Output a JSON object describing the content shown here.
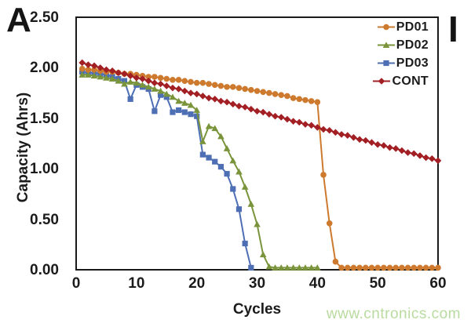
{
  "panel_label": "A",
  "side_label": "I",
  "watermark": {
    "text": "www.cntronics.com",
    "color": "#b9dba0"
  },
  "axis_color": "#1a1a1a",
  "chart_data": {
    "type": "line",
    "title": "",
    "xlabel": "Cycles",
    "ylabel": "Capacity (Ahrs)",
    "xlim": [
      0,
      60
    ],
    "ylim": [
      0,
      2.5
    ],
    "xticks": [
      0,
      10,
      20,
      30,
      40,
      50,
      60
    ],
    "ytick_labels": [
      "0.00",
      "0.50",
      "1.00",
      "1.50",
      "2.00",
      "2.50"
    ],
    "grid": false,
    "legend_position": "top-right-inside",
    "legend_order": [
      "PD01",
      "PD02",
      "PD03",
      "CONT"
    ],
    "series": [
      {
        "name": "PD01",
        "color": "#CE7A2E",
        "marker": "circle",
        "x_start": 1,
        "values": [
          1.99,
          1.98,
          1.98,
          1.97,
          1.96,
          1.96,
          1.95,
          1.94,
          1.94,
          1.93,
          1.92,
          1.91,
          1.91,
          1.9,
          1.89,
          1.88,
          1.88,
          1.87,
          1.86,
          1.85,
          1.85,
          1.84,
          1.83,
          1.82,
          1.81,
          1.81,
          1.8,
          1.79,
          1.78,
          1.77,
          1.76,
          1.75,
          1.74,
          1.73,
          1.72,
          1.7,
          1.69,
          1.68,
          1.67,
          1.66,
          0.94,
          0.46,
          0.08,
          0.02,
          0.02,
          0.02,
          0.02,
          0.02,
          0.02,
          0.02,
          0.02,
          0.02,
          0.02,
          0.02,
          0.02,
          0.02,
          0.02,
          0.02,
          0.02,
          0.02
        ]
      },
      {
        "name": "PD02",
        "color": "#7A943C",
        "marker": "triangle",
        "x_start": 1,
        "values": [
          1.93,
          1.93,
          1.92,
          1.91,
          1.9,
          1.89,
          1.87,
          1.84,
          1.86,
          1.85,
          1.83,
          1.81,
          1.79,
          1.77,
          1.74,
          1.71,
          1.67,
          1.65,
          1.63,
          1.58,
          1.27,
          1.42,
          1.4,
          1.32,
          1.2,
          1.08,
          0.97,
          0.82,
          0.65,
          0.45,
          0.15,
          0.03,
          0.02,
          0.02,
          0.02,
          0.02,
          0.02,
          0.02,
          0.02,
          0.02
        ]
      },
      {
        "name": "PD03",
        "color": "#4F6FB5",
        "marker": "square",
        "x_start": 1,
        "values": [
          1.96,
          1.95,
          1.95,
          1.94,
          1.93,
          1.91,
          1.89,
          1.87,
          1.69,
          1.83,
          1.81,
          1.79,
          1.57,
          1.73,
          1.71,
          1.56,
          1.58,
          1.56,
          1.54,
          1.52,
          1.14,
          1.11,
          1.07,
          1.02,
          0.95,
          0.8,
          0.6,
          0.26,
          0.02
        ]
      },
      {
        "name": "CONT",
        "color": "#A21F24",
        "marker": "diamond",
        "x_start": 1,
        "values": [
          2.05,
          2.03,
          2.02,
          2.0,
          1.98,
          1.97,
          1.95,
          1.94,
          1.92,
          1.9,
          1.89,
          1.87,
          1.85,
          1.84,
          1.82,
          1.8,
          1.79,
          1.77,
          1.75,
          1.74,
          1.72,
          1.7,
          1.69,
          1.67,
          1.66,
          1.64,
          1.62,
          1.61,
          1.59,
          1.57,
          1.56,
          1.54,
          1.52,
          1.51,
          1.49,
          1.47,
          1.46,
          1.44,
          1.43,
          1.41,
          1.39,
          1.38,
          1.36,
          1.34,
          1.33,
          1.31,
          1.29,
          1.28,
          1.26,
          1.24,
          1.23,
          1.21,
          1.2,
          1.18,
          1.16,
          1.15,
          1.13,
          1.11,
          1.1,
          1.08
        ]
      }
    ]
  }
}
